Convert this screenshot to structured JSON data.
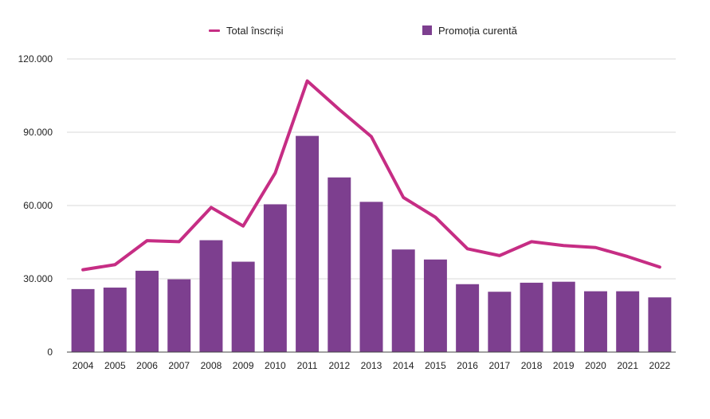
{
  "legend": {
    "line_label": "Total înscriși",
    "bar_label": "Promoția curentă"
  },
  "colors": {
    "line": "#c62d84",
    "bar": "#7d3f8f",
    "grid": "#d9d9d9",
    "axis": "#444444"
  },
  "chart_data": {
    "type": "bar",
    "title": "",
    "xlabel": "",
    "ylabel": "",
    "categories": [
      "2004",
      "2005",
      "2006",
      "2007",
      "2008",
      "2009",
      "2010",
      "2011",
      "2012",
      "2013",
      "2014",
      "2015",
      "2016",
      "2017",
      "2018",
      "2019",
      "2020",
      "2021",
      "2022"
    ],
    "ylim": [
      0,
      120000
    ],
    "y_ticks": [
      0,
      30000,
      60000,
      90000,
      120000
    ],
    "y_tick_labels": [
      "0",
      "30.000",
      "60.000",
      "90.000",
      "120.000"
    ],
    "grid": true,
    "legend_position": "top",
    "series": [
      {
        "name": "Promoția curentă",
        "type": "bar",
        "values": [
          25800,
          26400,
          33300,
          29800,
          45800,
          37000,
          60500,
          88500,
          71500,
          61500,
          42000,
          37900,
          27800,
          24700,
          28400,
          28800,
          24900,
          24900,
          22400
        ]
      },
      {
        "name": "Total înscriși",
        "type": "line",
        "values": [
          33700,
          35800,
          45600,
          45200,
          59200,
          51600,
          73300,
          111000,
          99300,
          88200,
          63300,
          55200,
          42300,
          39500,
          45200,
          43600,
          42800,
          39100,
          34800
        ]
      }
    ]
  }
}
